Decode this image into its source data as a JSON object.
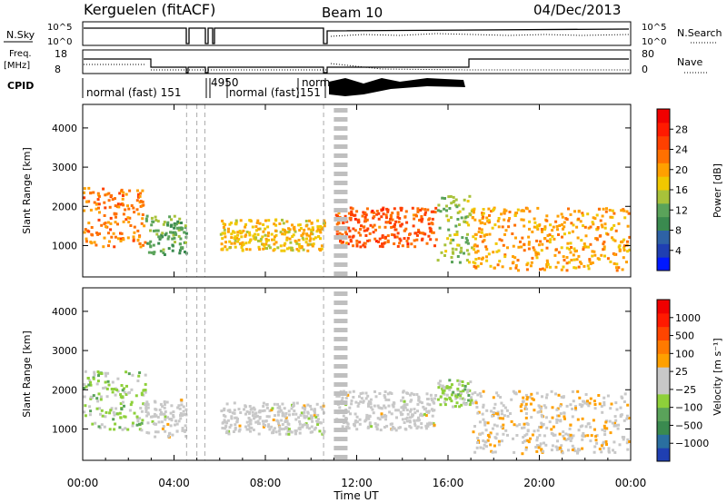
{
  "header": {
    "station": "Kerguelen (fitACF)",
    "beam": "Beam 10",
    "date": "04/Dec/2013"
  },
  "strip": {
    "nsky_label": "N.Sky",
    "nsky_ticks": [
      "10^5",
      "10^0"
    ],
    "nsearch_label": "N.Search",
    "nsearch_ticks": [
      "10^5",
      "10^0"
    ],
    "freq_label": "Freq.",
    "freq_unit": "[MHz]",
    "freq_ticks": [
      "18",
      "8"
    ],
    "nave_label": "Nave",
    "nave_ticks": [
      "80",
      "0"
    ],
    "cpid_label": "CPID"
  },
  "cpid_segments": [
    {
      "label": "normal (fast) 151",
      "start": 0.0,
      "end": 5.3
    },
    {
      "label": "4950",
      "start": 5.3,
      "end": 5.8
    },
    {
      "label": "normal (fast)",
      "start": 5.8,
      "end": 9.7
    },
    {
      "label": "151",
      "start": 9.7,
      "end": 10.55
    },
    {
      "label": "norm",
      "start": 10.55,
      "end": 11.0
    }
  ],
  "time_axis": {
    "label": "Time UT",
    "ticks": [
      "00:00",
      "04:00",
      "08:00",
      "12:00",
      "16:00",
      "20:00",
      "00:00"
    ]
  },
  "colorbars": {
    "power": {
      "label": "Power [dB]",
      "ticks": [
        "28",
        "24",
        "20",
        "16",
        "12",
        "8",
        "4"
      ],
      "colors": [
        "#0018ff",
        "#1f3fb2",
        "#2e62a5",
        "#3a8a4f",
        "#5aa35a",
        "#a8c23a",
        "#f0c800",
        "#ffa000",
        "#ff7000",
        "#ff4000",
        "#ff1a00",
        "#f00000"
      ]
    },
    "velocity": {
      "label": "Velocity [m s⁻¹]",
      "ticks": [
        "1000",
        "500",
        "100",
        "25",
        "−25",
        "−100",
        "−500",
        "−1000"
      ],
      "colors": [
        "#1f3fb2",
        "#2a6fa0",
        "#3a8a4f",
        "#5aa35a",
        "#8ed03a",
        "#c8c8c8",
        "#c8c8c8",
        "#ffa000",
        "#ff7a00",
        "#ff4500",
        "#ff1a00",
        "#f00000"
      ]
    }
  },
  "chart_data": [
    {
      "type": "heatmap",
      "panel": "power",
      "ylabel": "Slant Range [km]",
      "xlabel": "",
      "xlim": [
        0,
        24
      ],
      "ylim": [
        200,
        4600
      ],
      "yticks": [
        1000,
        2000,
        3000,
        4000
      ],
      "colorbar_range": [
        0,
        32
      ],
      "features": [
        {
          "t": [
            0.0,
            2.7
          ],
          "r": [
            1000,
            2500
          ],
          "v": 22
        },
        {
          "t": [
            2.7,
            4.5
          ],
          "r": [
            800,
            1800
          ],
          "v": 12
        },
        {
          "t": [
            6.0,
            10.7
          ],
          "r": [
            900,
            1700
          ],
          "v": 18
        },
        {
          "t": [
            11.0,
            15.5
          ],
          "r": [
            1000,
            2000
          ],
          "v": 24
        },
        {
          "t": [
            15.5,
            17.0
          ],
          "r": [
            600,
            2300
          ],
          "v": 14
        },
        {
          "t": [
            17.0,
            23.9
          ],
          "r": [
            400,
            2000
          ],
          "v": 20
        }
      ]
    },
    {
      "type": "heatmap",
      "panel": "velocity",
      "ylabel": "Slant Range [km]",
      "xlabel": "Time UT",
      "xlim": [
        0,
        24
      ],
      "ylim": [
        200,
        4600
      ],
      "yticks": [
        1000,
        2000,
        3000,
        4000
      ],
      "colorbar_range": [
        -1000,
        1000
      ],
      "features": [
        {
          "t": [
            0.0,
            2.7
          ],
          "r": [
            1000,
            2500
          ],
          "v": -200
        },
        {
          "t": [
            2.7,
            4.5
          ],
          "r": [
            800,
            1800
          ],
          "v": 0
        },
        {
          "t": [
            6.0,
            10.7
          ],
          "r": [
            900,
            1700
          ],
          "v": 0
        },
        {
          "t": [
            11.0,
            15.5
          ],
          "r": [
            1000,
            2000
          ],
          "v": 0
        },
        {
          "t": [
            15.5,
            17.0
          ],
          "r": [
            1600,
            2300
          ],
          "v": -200
        },
        {
          "t": [
            17.0,
            23.9
          ],
          "r": [
            400,
            2000
          ],
          "v": 100
        }
      ]
    }
  ]
}
